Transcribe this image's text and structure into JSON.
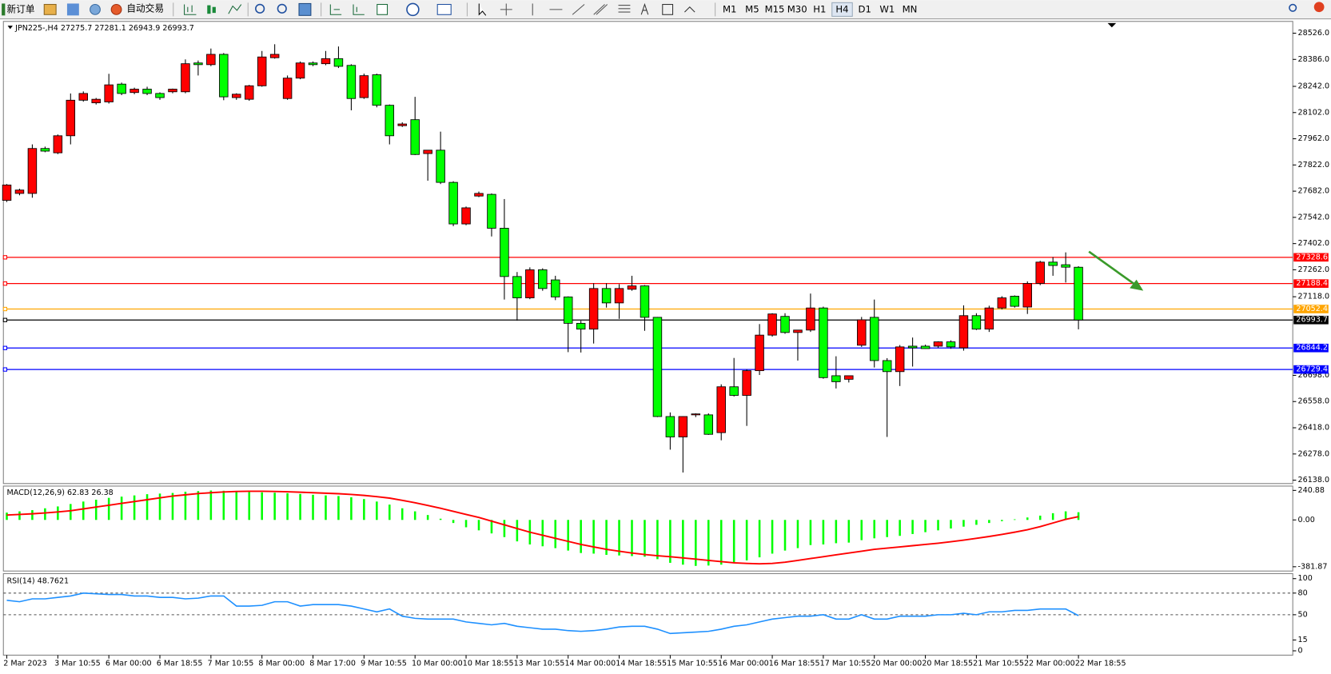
{
  "toolbar": {
    "new_order": "新订单",
    "auto_trading": "自动交易",
    "timeframes": [
      "M1",
      "M5",
      "M15",
      "M30",
      "H1",
      "H4",
      "D1",
      "W1",
      "MN"
    ],
    "active": "H4"
  },
  "chart_data": [
    {
      "type": "candlestick",
      "title": "JPN225-,H4  27275.7 27281.1 26943.9 26993.7",
      "up_color": "#ff0000",
      "down_color": "#00ff00",
      "categories": [
        "2 Mar 2023",
        null,
        null,
        null,
        "3 Mar 10:55",
        null,
        null,
        null,
        "6 Mar 00:00",
        null,
        null,
        null,
        "6 Mar 18:55",
        null,
        null,
        null,
        "7 Mar 10:55",
        null,
        null,
        null,
        "8 Mar 00:00",
        null,
        null,
        null,
        "8 Mar 17:00",
        null,
        null,
        null,
        "9 Mar 10:55",
        null,
        null,
        null,
        "10 Mar 00:00",
        null,
        null,
        null,
        "10 Mar 18:55",
        null,
        null,
        null,
        "13 Mar 10:55",
        null,
        null,
        null,
        "14 Mar 00:00",
        null,
        null,
        null,
        "14 Mar 18:55",
        null,
        null,
        null,
        "15 Mar 10:55",
        null,
        null,
        null,
        "16 Mar 00:00",
        null,
        null,
        null,
        "16 Mar 18:55",
        null,
        null,
        null,
        "17 Mar 10:55",
        null,
        null,
        null,
        "20 Mar 00:00",
        null,
        null,
        null,
        "20 Mar 18:55",
        null,
        null,
        null,
        "21 Mar 10:55",
        null,
        null,
        null,
        "22 Mar 00:00",
        null,
        null,
        null,
        "22 Mar 18:55"
      ],
      "open": [
        27633,
        27670,
        27670,
        27910,
        27887,
        27978,
        28168,
        28154,
        28159,
        28254,
        28209,
        28227,
        28204,
        28213,
        28213,
        28367,
        28358,
        28413,
        28182,
        28173,
        28245,
        28395,
        28177,
        28286,
        28367,
        28363,
        28390,
        28354,
        28182,
        28304,
        28141,
        28032,
        28064,
        27883,
        27901,
        27729,
        27507,
        27656,
        27665,
        27484,
        27226,
        27112,
        27262,
        27208,
        27117,
        26976,
        26945,
        27162,
        27085,
        27158,
        27176,
        27008,
        26478,
        26369,
        26487,
        26487,
        26392,
        26637,
        26591,
        26723,
        26913,
        27013,
        26927,
        26940,
        27058,
        26696,
        26677,
        26859,
        27008,
        26777,
        26718,
        26854,
        26854,
        26854,
        26877,
        26845,
        27017,
        26945,
        27058,
        27121,
        27063,
        27189,
        27303,
        27289,
        27275.7
      ],
      "high": [
        27720,
        27695,
        27932,
        27920,
        27985,
        28204,
        28215,
        28180,
        28309,
        28262,
        28235,
        28240,
        28210,
        28230,
        28386,
        28380,
        28444,
        28420,
        28205,
        28250,
        28431,
        28467,
        28300,
        28375,
        28375,
        28431,
        28455,
        28360,
        28310,
        28310,
        28145,
        28050,
        28186,
        27900,
        28000,
        27735,
        27600,
        27680,
        27670,
        27640,
        27250,
        27275,
        27270,
        27230,
        27120,
        26990,
        27190,
        27190,
        27185,
        27230,
        27180,
        27010,
        26500,
        26480,
        26495,
        26495,
        26650,
        26791,
        26730,
        26972,
        27030,
        27030,
        26940,
        27135,
        27065,
        26800,
        26690,
        27010,
        27103,
        26790,
        26860,
        26900,
        26862,
        26880,
        26885,
        27072,
        27030,
        27070,
        27121,
        27125,
        27200,
        27310,
        27330,
        27355,
        27281.1
      ],
      "low": [
        27624,
        27660,
        27647,
        27890,
        27880,
        27932,
        28160,
        28145,
        28150,
        28195,
        28200,
        28195,
        28170,
        28205,
        28205,
        28300,
        28350,
        28168,
        28170,
        28165,
        28240,
        28390,
        28170,
        28280,
        28350,
        28355,
        28340,
        28114,
        28175,
        28130,
        27932,
        28025,
        27875,
        27738,
        27720,
        27495,
        27500,
        27650,
        27440,
        27103,
        26990,
        27105,
        27150,
        27100,
        26822,
        26820,
        26868,
        27060,
        27000,
        27150,
        26936,
        26475,
        26301,
        26179,
        26475,
        26380,
        26351,
        26585,
        26428,
        26700,
        26905,
        26920,
        26777,
        26930,
        26680,
        26628,
        26660,
        26850,
        26740,
        26369,
        26641,
        26745,
        26840,
        26845,
        26840,
        26830,
        26940,
        26930,
        27050,
        27060,
        27026,
        27180,
        27230,
        27194,
        26943.9
      ],
      "close": [
        27715,
        27688,
        27910,
        27896,
        27978,
        28168,
        28204,
        28173,
        28250,
        28204,
        28227,
        28204,
        28182,
        28227,
        28363,
        28358,
        28413,
        28186,
        28200,
        28245,
        28399,
        28413,
        28286,
        28367,
        28358,
        28390,
        28349,
        28177,
        28299,
        28141,
        27978,
        28041,
        27878,
        27901,
        27729,
        27507,
        27593,
        27670,
        27484,
        27226,
        27112,
        27262,
        27162,
        27117,
        26976,
        26945,
        27162,
        27085,
        27162,
        27176,
        27008,
        26478,
        26369,
        26478,
        26492,
        26383,
        26637,
        26591,
        26723,
        26913,
        27026,
        26927,
        26940,
        27058,
        26686,
        26664,
        26696,
        26995,
        26777,
        26718,
        26850,
        26845,
        26841,
        26877,
        26850,
        27017,
        26945,
        27058,
        27112,
        27067,
        27189,
        27303,
        27285,
        27276,
        26993.7
      ],
      "ylim": [
        26120,
        28589
      ],
      "yticks": [
        {
          "value": 28526,
          "label": "28526.0"
        },
        {
          "value": 28386,
          "label": "28386.0"
        },
        {
          "value": 28242,
          "label": "28242.0"
        },
        {
          "value": 28102,
          "label": "28102.0"
        },
        {
          "value": 27962,
          "label": "27962.0"
        },
        {
          "value": 27822,
          "label": "27822.0"
        },
        {
          "value": 27682,
          "label": "27682.0"
        },
        {
          "value": 27542,
          "label": "27542.0"
        },
        {
          "value": 27402,
          "label": "27402.0"
        },
        {
          "value": 27262,
          "label": "27262.0"
        },
        {
          "value": 27118,
          "label": "27118.0"
        },
        {
          "value": 26698,
          "label": "26698.0"
        },
        {
          "value": 26558,
          "label": "26558.0"
        },
        {
          "value": 26418,
          "label": "26418.0"
        },
        {
          "value": 26278,
          "label": "26278.0"
        },
        {
          "value": 26138,
          "label": "26138.0"
        }
      ],
      "hlines": [
        {
          "value": 27328.6,
          "color": "#ff0000"
        },
        {
          "value": 27188.4,
          "color": "#ff0000"
        },
        {
          "value": 27052.4,
          "color": "#ffa500"
        },
        {
          "value": 26993.7,
          "color": "#000000"
        },
        {
          "value": 26844.2,
          "color": "#0000ff"
        },
        {
          "value": 26729.4,
          "color": "#0000ff"
        }
      ]
    },
    {
      "type": "macd",
      "title": "MACD(12,26,9) 62.83 26.38",
      "ylim": [
        -417,
        276
      ],
      "yticks": [
        240.88,
        {
          "value": 0,
          "label": "0.00"
        },
        -381.87
      ],
      "series": [
        {
          "color": "#00ff00",
          "values": [
            60,
            70,
            80,
            95,
            110,
            130,
            150,
            165,
            180,
            190,
            200,
            210,
            215,
            220,
            230,
            235,
            240,
            238,
            232,
            228,
            225,
            222,
            218,
            212,
            205,
            200,
            195,
            185,
            170,
            150,
            125,
            95,
            70,
            40,
            10,
            -25,
            -60,
            -85,
            -110,
            -140,
            -175,
            -200,
            -215,
            -230,
            -250,
            -270,
            -275,
            -285,
            -290,
            -295,
            -300,
            -320,
            -350,
            -365,
            -375,
            -372,
            -365,
            -350,
            -330,
            -305,
            -275,
            -250,
            -230,
            -205,
            -200,
            -190,
            -185,
            -165,
            -150,
            -140,
            -130,
            -115,
            -100,
            -85,
            -70,
            -55,
            -40,
            -25,
            -10,
            5,
            20,
            35,
            55,
            70,
            62.83
          ]
        },
        {
          "color": "#ff0000",
          "values": [
            40,
            45,
            50,
            57,
            65,
            75,
            90,
            105,
            120,
            135,
            150,
            165,
            180,
            195,
            205,
            215,
            222,
            228,
            232,
            234,
            234,
            232,
            230,
            226,
            222,
            218,
            214,
            208,
            200,
            190,
            178,
            160,
            140,
            118,
            95,
            70,
            45,
            20,
            -10,
            -40,
            -70,
            -100,
            -125,
            -150,
            -175,
            -200,
            -220,
            -240,
            -255,
            -270,
            -282,
            -292,
            -300,
            -310,
            -320,
            -330,
            -340,
            -350,
            -355,
            -358,
            -355,
            -345,
            -330,
            -315,
            -300,
            -285,
            -270,
            -255,
            -240,
            -230,
            -220,
            -210,
            -200,
            -190,
            -178,
            -165,
            -150,
            -135,
            -118,
            -100,
            -80,
            -55,
            -25,
            5,
            26.38
          ]
        }
      ]
    },
    {
      "type": "line",
      "title": "RSI(14) 48.7621",
      "color": "#1e90ff",
      "ylim": [
        -6,
        107
      ],
      "yticks": [
        100,
        80,
        50,
        15,
        0
      ],
      "levels": [
        80,
        50
      ],
      "values": [
        70,
        68,
        72,
        72,
        74,
        76,
        80,
        79,
        78,
        78,
        76,
        76,
        74,
        74,
        72,
        73,
        76,
        76,
        62,
        62,
        63,
        68,
        68,
        62,
        64,
        64,
        64,
        62,
        58,
        54,
        58,
        48,
        45,
        44,
        44,
        44,
        40,
        38,
        36,
        38,
        34,
        32,
        30,
        30,
        28,
        27,
        28,
        30,
        33,
        34,
        34,
        30,
        24,
        25,
        26,
        27,
        30,
        34,
        36,
        40,
        44,
        46,
        48,
        48,
        50,
        44,
        44,
        50,
        44,
        44,
        48,
        48,
        48,
        50,
        50,
        52,
        50,
        54,
        54,
        56,
        56,
        58,
        58,
        58,
        48.7621
      ]
    }
  ]
}
